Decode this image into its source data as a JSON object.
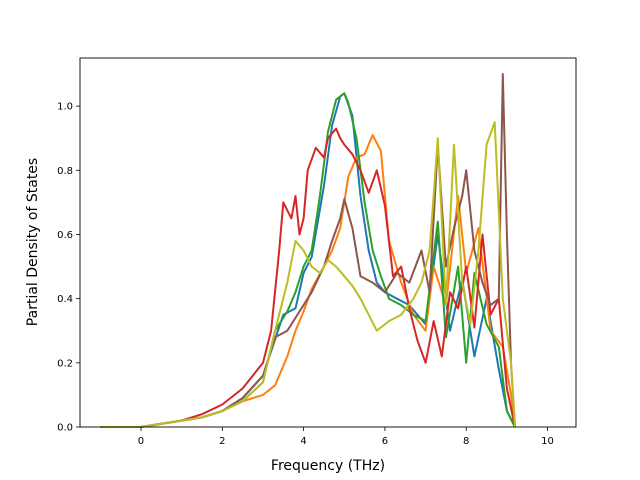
{
  "chart_data": {
    "type": "line",
    "xlabel": "Frequency (THz)",
    "ylabel": "Partial Density of States",
    "xlim": [
      -1.5,
      10.7
    ],
    "ylim": [
      0.0,
      1.15
    ],
    "xticks": [
      0,
      2,
      4,
      6,
      8,
      10
    ],
    "yticks": [
      0.0,
      0.2,
      0.4,
      0.6,
      0.8,
      1.0
    ],
    "xtick_labels": [
      "0",
      "2",
      "4",
      "6",
      "8",
      "10"
    ],
    "ytick_labels": [
      "0.0",
      "0.2",
      "0.4",
      "0.6",
      "0.8",
      "1.0"
    ],
    "grid": false,
    "legend": "none",
    "series": [
      {
        "color": "#1f77b4",
        "x": [
          -1.0,
          0.0,
          0.5,
          1.0,
          1.5,
          2.0,
          2.5,
          3.0,
          3.5,
          3.8,
          4.0,
          4.2,
          4.5,
          4.7,
          4.9,
          5.0,
          5.2,
          5.4,
          5.6,
          5.8,
          6.0,
          6.3,
          6.6,
          7.0,
          7.3,
          7.6,
          7.9,
          8.2,
          8.5,
          8.8,
          9.0,
          9.2
        ],
        "y": [
          0.0,
          0.0,
          0.01,
          0.02,
          0.03,
          0.05,
          0.09,
          0.16,
          0.35,
          0.37,
          0.48,
          0.53,
          0.75,
          0.94,
          1.03,
          1.04,
          0.97,
          0.72,
          0.55,
          0.45,
          0.42,
          0.4,
          0.38,
          0.32,
          0.6,
          0.3,
          0.46,
          0.22,
          0.4,
          0.18,
          0.05,
          0.0
        ]
      },
      {
        "color": "#ff7f0e",
        "x": [
          -1.0,
          0.0,
          0.5,
          1.0,
          1.5,
          2.0,
          2.5,
          3.0,
          3.3,
          3.6,
          3.8,
          4.0,
          4.2,
          4.5,
          4.7,
          4.9,
          5.1,
          5.3,
          5.5,
          5.7,
          5.9,
          6.1,
          6.4,
          6.7,
          7.0,
          7.2,
          7.5,
          7.8,
          8.0,
          8.3,
          8.6,
          8.9,
          9.1,
          9.2
        ],
        "y": [
          0.0,
          0.0,
          0.01,
          0.02,
          0.03,
          0.05,
          0.08,
          0.1,
          0.13,
          0.22,
          0.3,
          0.36,
          0.43,
          0.5,
          0.55,
          0.62,
          0.78,
          0.84,
          0.85,
          0.91,
          0.86,
          0.58,
          0.45,
          0.35,
          0.3,
          0.5,
          0.38,
          0.72,
          0.48,
          0.62,
          0.3,
          0.25,
          0.1,
          0.0
        ]
      },
      {
        "color": "#2ca02c",
        "x": [
          -1.0,
          0.0,
          0.5,
          1.0,
          1.5,
          2.0,
          2.5,
          3.0,
          3.3,
          3.6,
          3.8,
          4.0,
          4.2,
          4.4,
          4.6,
          4.8,
          5.0,
          5.1,
          5.3,
          5.5,
          5.7,
          5.9,
          6.1,
          6.4,
          6.7,
          7.0,
          7.3,
          7.5,
          7.8,
          8.0,
          8.2,
          8.5,
          8.8,
          9.0,
          9.2
        ],
        "y": [
          0.0,
          0.0,
          0.01,
          0.02,
          0.03,
          0.05,
          0.08,
          0.14,
          0.3,
          0.36,
          0.42,
          0.5,
          0.55,
          0.72,
          0.92,
          1.02,
          1.04,
          1.01,
          0.9,
          0.7,
          0.55,
          0.47,
          0.4,
          0.38,
          0.35,
          0.33,
          0.64,
          0.28,
          0.5,
          0.2,
          0.48,
          0.32,
          0.25,
          0.05,
          0.0
        ]
      },
      {
        "color": "#d62728",
        "x": [
          -1.0,
          0.0,
          0.5,
          1.0,
          1.5,
          2.0,
          2.5,
          3.0,
          3.2,
          3.4,
          3.5,
          3.7,
          3.8,
          3.9,
          4.0,
          4.1,
          4.3,
          4.5,
          4.6,
          4.8,
          4.9,
          5.0,
          5.2,
          5.4,
          5.6,
          5.8,
          6.0,
          6.2,
          6.4,
          6.6,
          6.8,
          7.0,
          7.2,
          7.4,
          7.6,
          7.8,
          8.0,
          8.2,
          8.4,
          8.6,
          8.8,
          9.0,
          9.2
        ],
        "y": [
          0.0,
          0.0,
          0.01,
          0.02,
          0.04,
          0.07,
          0.12,
          0.2,
          0.3,
          0.55,
          0.7,
          0.65,
          0.72,
          0.6,
          0.65,
          0.8,
          0.87,
          0.84,
          0.9,
          0.93,
          0.9,
          0.88,
          0.85,
          0.8,
          0.73,
          0.8,
          0.69,
          0.47,
          0.5,
          0.37,
          0.27,
          0.2,
          0.33,
          0.22,
          0.42,
          0.37,
          0.5,
          0.31,
          0.6,
          0.35,
          0.4,
          0.12,
          0.0
        ]
      },
      {
        "color": "#8c564b",
        "x": [
          -1.0,
          0.0,
          0.5,
          1.0,
          1.5,
          2.0,
          2.5,
          3.0,
          3.3,
          3.6,
          3.9,
          4.2,
          4.5,
          4.7,
          4.9,
          5.0,
          5.2,
          5.4,
          5.7,
          6.0,
          6.3,
          6.6,
          6.9,
          7.1,
          7.3,
          7.5,
          7.7,
          7.9,
          8.0,
          8.2,
          8.4,
          8.6,
          8.8,
          8.9,
          9.0,
          9.1,
          9.2
        ],
        "y": [
          0.0,
          0.0,
          0.01,
          0.02,
          0.03,
          0.05,
          0.09,
          0.16,
          0.28,
          0.3,
          0.36,
          0.42,
          0.5,
          0.58,
          0.65,
          0.71,
          0.62,
          0.47,
          0.45,
          0.42,
          0.48,
          0.45,
          0.55,
          0.42,
          0.88,
          0.5,
          0.62,
          0.72,
          0.8,
          0.55,
          0.45,
          0.38,
          0.4,
          1.1,
          0.6,
          0.2,
          0.0
        ]
      },
      {
        "color": "#bcbd22",
        "x": [
          -1.0,
          0.0,
          0.5,
          1.0,
          1.5,
          2.0,
          2.5,
          3.0,
          3.3,
          3.6,
          3.8,
          4.0,
          4.2,
          4.4,
          4.6,
          4.8,
          5.0,
          5.2,
          5.4,
          5.6,
          5.8,
          6.1,
          6.4,
          6.7,
          6.9,
          7.1,
          7.3,
          7.5,
          7.7,
          7.9,
          8.1,
          8.3,
          8.5,
          8.7,
          8.9,
          9.1,
          9.2
        ],
        "y": [
          0.0,
          0.0,
          0.01,
          0.02,
          0.03,
          0.05,
          0.08,
          0.14,
          0.3,
          0.45,
          0.58,
          0.55,
          0.5,
          0.48,
          0.52,
          0.5,
          0.47,
          0.44,
          0.4,
          0.35,
          0.3,
          0.33,
          0.35,
          0.4,
          0.45,
          0.55,
          0.9,
          0.38,
          0.88,
          0.45,
          0.32,
          0.55,
          0.88,
          0.95,
          0.4,
          0.2,
          0.0
        ]
      }
    ]
  }
}
